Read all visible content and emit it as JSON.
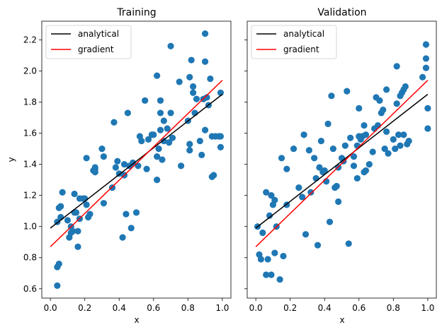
{
  "chart_data": [
    {
      "type": "scatter",
      "title": "Training",
      "xlabel": "x",
      "ylabel": "y",
      "xlim": [
        -0.05,
        1.05
      ],
      "ylim": [
        0.54,
        2.32
      ],
      "xticks": [
        "0.0",
        "0.2",
        "0.4",
        "0.6",
        "0.8",
        "1.0"
      ],
      "yticks": [
        "0.6",
        "0.8",
        "1.0",
        "1.2",
        "1.4",
        "1.6",
        "1.8",
        "2.0",
        "2.2"
      ],
      "legend_position": "top-left",
      "series": [
        {
          "name": "analytical",
          "kind": "line",
          "color": "#000000",
          "x": [
            0.0,
            1.0
          ],
          "y": [
            0.99,
            1.85
          ]
        },
        {
          "name": "gradient",
          "kind": "line",
          "color": "#ff0000",
          "x": [
            0.0,
            1.0
          ],
          "y": [
            0.87,
            1.94
          ]
        },
        {
          "kind": "points",
          "color": "#1f77b4",
          "points": [
            [
              0.04,
              0.62
            ],
            [
              0.04,
              0.74
            ],
            [
              0.05,
              0.76
            ],
            [
              0.04,
              1.03
            ],
            [
              0.05,
              1.12
            ],
            [
              0.06,
              1.13
            ],
            [
              0.06,
              1.06
            ],
            [
              0.07,
              1.22
            ],
            [
              0.1,
              1.04
            ],
            [
              0.11,
              0.93
            ],
            [
              0.12,
              0.96
            ],
            [
              0.12,
              1.0
            ],
            [
              0.13,
              0.97
            ],
            [
              0.14,
              1.09
            ],
            [
              0.14,
              1.21
            ],
            [
              0.15,
              1.09
            ],
            [
              0.16,
              0.97
            ],
            [
              0.16,
              0.87
            ],
            [
              0.17,
              1.18
            ],
            [
              0.17,
              1.05
            ],
            [
              0.19,
              1.18
            ],
            [
              0.2,
              1.18
            ],
            [
              0.21,
              1.44
            ],
            [
              0.21,
              1.14
            ],
            [
              0.22,
              1.06
            ],
            [
              0.23,
              1.08
            ],
            [
              0.25,
              1.36
            ],
            [
              0.26,
              1.37
            ],
            [
              0.26,
              1.38
            ],
            [
              0.26,
              1.35
            ],
            [
              0.3,
              1.5
            ],
            [
              0.31,
              1.45
            ],
            [
              0.31,
              1.15
            ],
            [
              0.36,
              1.25
            ],
            [
              0.37,
              1.67
            ],
            [
              0.38,
              1.38
            ],
            [
              0.39,
              1.42
            ],
            [
              0.4,
              1.34
            ],
            [
              0.42,
              0.93
            ],
            [
              0.43,
              1.33
            ],
            [
              0.43,
              1.4
            ],
            [
              0.44,
              1.08
            ],
            [
              0.45,
              1.73
            ],
            [
              0.46,
              1.39
            ],
            [
              0.47,
              0.99
            ],
            [
              0.48,
              1.41
            ],
            [
              0.5,
              1.09
            ],
            [
              0.51,
              1.39
            ],
            [
              0.52,
              1.58
            ],
            [
              0.53,
              1.55
            ],
            [
              0.55,
              1.81
            ],
            [
              0.56,
              1.37
            ],
            [
              0.57,
              1.56
            ],
            [
              0.59,
              1.59
            ],
            [
              0.6,
              1.59
            ],
            [
              0.62,
              1.45
            ],
            [
              0.62,
              1.3
            ],
            [
              0.62,
              1.97
            ],
            [
              0.63,
              1.5
            ],
            [
              0.64,
              1.81
            ],
            [
              0.64,
              1.73
            ],
            [
              0.64,
              1.62
            ],
            [
              0.65,
              1.43
            ],
            [
              0.66,
              1.68
            ],
            [
              0.66,
              1.55
            ],
            [
              0.68,
              1.63
            ],
            [
              0.69,
              1.54
            ],
            [
              0.7,
              2.16
            ],
            [
              0.7,
              1.73
            ],
            [
              0.71,
              1.57
            ],
            [
              0.75,
              1.93
            ],
            [
              0.76,
              1.39
            ],
            [
              0.8,
              1.68
            ],
            [
              0.81,
              1.96
            ],
            [
              0.81,
              1.53
            ],
            [
              0.81,
              1.49
            ],
            [
              0.82,
              2.07
            ],
            [
              0.83,
              1.9
            ],
            [
              0.83,
              1.86
            ],
            [
              0.84,
              1.73
            ],
            [
              0.85,
              1.82
            ],
            [
              0.87,
              1.55
            ],
            [
              0.88,
              1.46
            ],
            [
              0.89,
              1.82
            ],
            [
              0.9,
              2.24
            ],
            [
              0.9,
              2.06
            ],
            [
              0.9,
              1.62
            ],
            [
              0.91,
              1.83
            ],
            [
              0.92,
              1.78
            ],
            [
              0.93,
              1.95
            ],
            [
              0.94,
              1.58
            ],
            [
              0.94,
              1.32
            ],
            [
              0.95,
              1.33
            ],
            [
              0.96,
              1.58
            ],
            [
              0.98,
              1.58
            ],
            [
              0.99,
              1.51
            ],
            [
              0.99,
              1.86
            ],
            [
              0.99,
              1.58
            ]
          ]
        }
      ]
    },
    {
      "type": "scatter",
      "title": "Validation",
      "xlabel": "x",
      "ylabel": "",
      "xlim": [
        -0.05,
        1.05
      ],
      "ylim": [
        0.54,
        2.32
      ],
      "xticks": [
        "0.0",
        "0.2",
        "0.4",
        "0.6",
        "0.8",
        "1.0"
      ],
      "legend_position": "top-left",
      "series": [
        {
          "name": "analytical",
          "kind": "line",
          "color": "#000000",
          "x": [
            0.0,
            1.0
          ],
          "y": [
            0.99,
            1.85
          ]
        },
        {
          "name": "gradient",
          "kind": "line",
          "color": "#ff0000",
          "x": [
            0.0,
            1.0
          ],
          "y": [
            0.87,
            1.94
          ]
        },
        {
          "kind": "points",
          "color": "#1f77b4",
          "points": [
            [
              0.01,
              1.0
            ],
            [
              0.02,
              0.82
            ],
            [
              0.03,
              0.79
            ],
            [
              0.04,
              0.96
            ],
            [
              0.06,
              0.69
            ],
            [
              0.06,
              1.22
            ],
            [
              0.07,
              0.79
            ],
            [
              0.08,
              1.07
            ],
            [
              0.09,
              0.69
            ],
            [
              0.09,
              1.2
            ],
            [
              0.1,
              1.14
            ],
            [
              0.11,
              0.83
            ],
            [
              0.11,
              1.17
            ],
            [
              0.12,
              1.0
            ],
            [
              0.14,
              0.66
            ],
            [
              0.15,
              1.44
            ],
            [
              0.16,
              0.81
            ],
            [
              0.18,
              1.37
            ],
            [
              0.18,
              1.14
            ],
            [
              0.22,
              1.5
            ],
            [
              0.25,
              1.25
            ],
            [
              0.27,
              1.19
            ],
            [
              0.28,
              1.59
            ],
            [
              0.29,
              0.95
            ],
            [
              0.31,
              1.49
            ],
            [
              0.32,
              1.22
            ],
            [
              0.34,
              1.44
            ],
            [
              0.35,
              1.31
            ],
            [
              0.36,
              0.88
            ],
            [
              0.37,
              1.38
            ],
            [
              0.38,
              1.55
            ],
            [
              0.39,
              1.35
            ],
            [
              0.4,
              1.36
            ],
            [
              0.41,
              1.29
            ],
            [
              0.42,
              1.66
            ],
            [
              0.43,
              1.03
            ],
            [
              0.44,
              1.84
            ],
            [
              0.45,
              1.5
            ],
            [
              0.46,
              1.25
            ],
            [
              0.47,
              1.26
            ],
            [
              0.48,
              1.16
            ],
            [
              0.48,
              1.38
            ],
            [
              0.5,
              1.44
            ],
            [
              0.51,
              1.42
            ],
            [
              0.52,
              1.52
            ],
            [
              0.53,
              1.87
            ],
            [
              0.54,
              0.89
            ],
            [
              0.55,
              1.57
            ],
            [
              0.57,
              1.45
            ],
            [
              0.57,
              1.39
            ],
            [
              0.59,
              1.31
            ],
            [
              0.59,
              1.52
            ],
            [
              0.6,
              1.58
            ],
            [
              0.6,
              1.76
            ],
            [
              0.61,
              1.56
            ],
            [
              0.62,
              1.58
            ],
            [
              0.63,
              1.65
            ],
            [
              0.63,
              1.35
            ],
            [
              0.64,
              1.59
            ],
            [
              0.64,
              1.36
            ],
            [
              0.66,
              1.4
            ],
            [
              0.68,
              1.48
            ],
            [
              0.69,
              1.63
            ],
            [
              0.7,
              1.83
            ],
            [
              0.71,
              1.65
            ],
            [
              0.72,
              1.81
            ],
            [
              0.73,
              1.73
            ],
            [
              0.74,
              1.75
            ],
            [
              0.75,
              1.5
            ],
            [
              0.76,
              1.88
            ],
            [
              0.76,
              1.61
            ],
            [
              0.77,
              1.47
            ],
            [
              0.8,
              1.56
            ],
            [
              0.81,
              1.5
            ],
            [
              0.82,
              2.03
            ],
            [
              0.82,
              1.79
            ],
            [
              0.83,
              1.59
            ],
            [
              0.84,
              1.84
            ],
            [
              0.84,
              1.52
            ],
            [
              0.85,
              1.86
            ],
            [
              0.86,
              1.88
            ],
            [
              0.86,
              1.59
            ],
            [
              0.87,
              1.9
            ],
            [
              0.88,
              1.53
            ],
            [
              0.89,
              1.55
            ],
            [
              0.97,
              1.96
            ],
            [
              0.99,
              2.17
            ],
            [
              0.99,
              2.08
            ],
            [
              0.99,
              2.02
            ],
            [
              1.0,
              1.63
            ],
            [
              1.0,
              1.76
            ]
          ]
        }
      ]
    }
  ]
}
